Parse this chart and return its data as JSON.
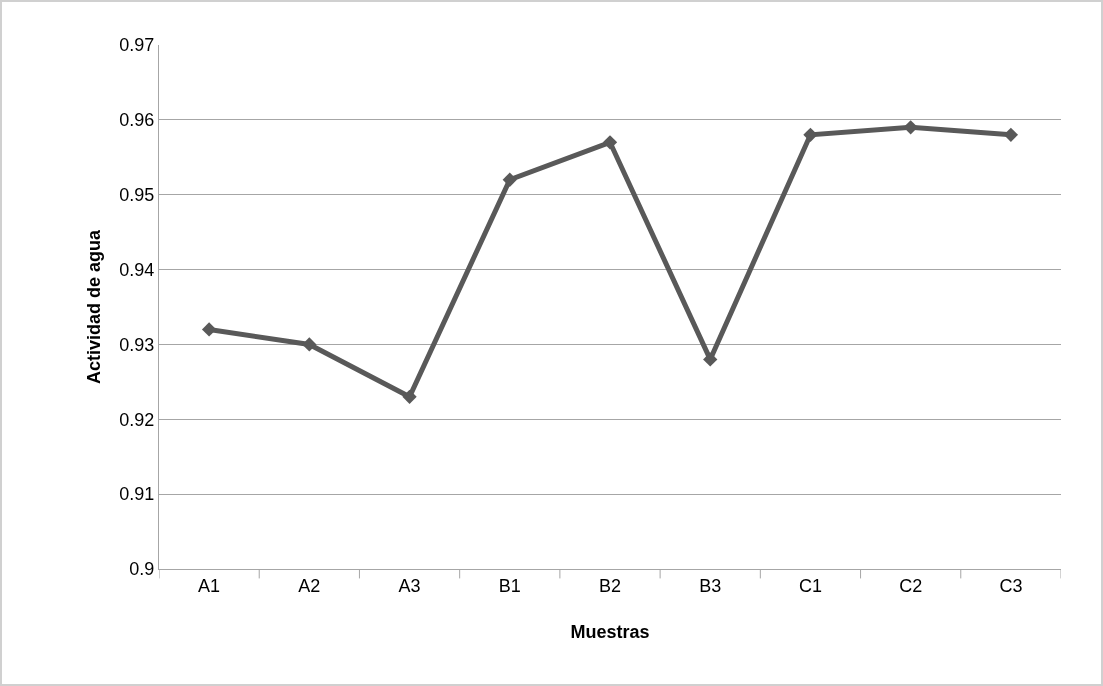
{
  "chart_data": {
    "type": "line",
    "xlabel": "Muestras",
    "ylabel": "Actividad de agua",
    "categories": [
      "A1",
      "A2",
      "A3",
      "B1",
      "B2",
      "B3",
      "C1",
      "C2",
      "C3"
    ],
    "series": [
      {
        "color": "#595959",
        "values": [
          0.932,
          0.93,
          0.923,
          0.952,
          0.957,
          0.928,
          0.958,
          0.959,
          0.958
        ]
      }
    ],
    "ylim": [
      0.9,
      0.97
    ],
    "yticks": [
      0.9,
      0.91,
      0.92,
      0.93,
      0.94,
      0.95,
      0.96,
      0.97
    ],
    "grid": "y",
    "marker": "diamond",
    "line_style": "solid"
  }
}
